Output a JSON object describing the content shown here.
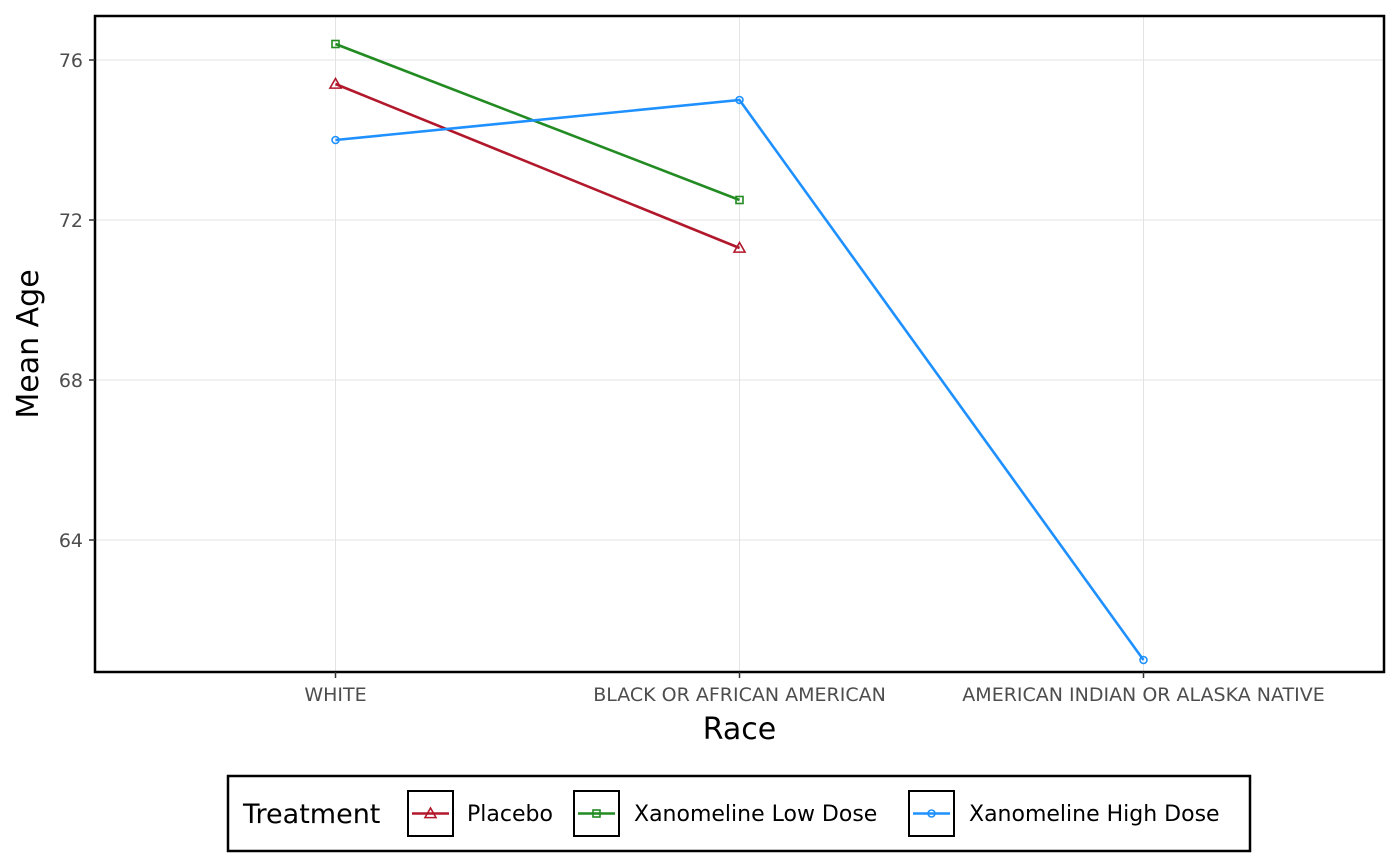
{
  "chart_data": {
    "type": "line",
    "title": "",
    "xlabel": "Race",
    "ylabel": "Mean Age",
    "categories": [
      "WHITE",
      "BLACK OR AFRICAN AMERICAN",
      "AMERICAN INDIAN OR ALASKA NATIVE"
    ],
    "y_ticks": [
      64,
      68,
      72,
      76
    ],
    "ylim": [
      60.7,
      77.1
    ],
    "grid": true,
    "legend": {
      "title": "Treatment",
      "position": "bottom"
    },
    "series": [
      {
        "name": "Placebo",
        "color": "#b2182b",
        "marker": "triangle",
        "values": [
          75.4,
          71.3,
          null
        ]
      },
      {
        "name": "Xanomeline Low Dose",
        "color": "#228b22",
        "marker": "square",
        "values": [
          76.4,
          72.5,
          null
        ]
      },
      {
        "name": "Xanomeline High Dose",
        "color": "#1e90ff",
        "marker": "circle",
        "values": [
          74.0,
          75.0,
          61.0
        ]
      }
    ]
  }
}
